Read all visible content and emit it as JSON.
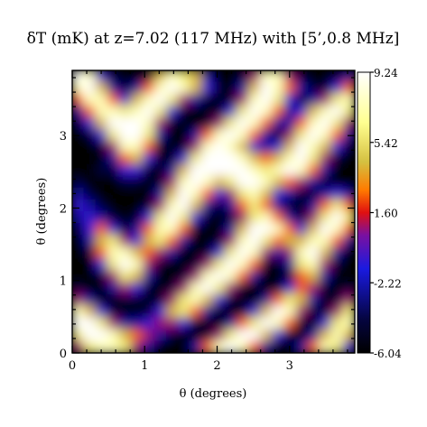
{
  "chart_data": {
    "type": "heatmap",
    "title": "δT (mK) at z=7.02 (117 MHz) with [5’,0.8 MHz]",
    "xlabel": "θ (degrees)",
    "ylabel": "θ (degrees)",
    "xlim": [
      0,
      3.9
    ],
    "ylim": [
      0,
      3.9
    ],
    "xticks": [
      "0",
      "1",
      "2",
      "3"
    ],
    "yticks": [
      "0",
      "1",
      "2",
      "3"
    ],
    "colorbar": {
      "range": [
        -6.04,
        9.24
      ],
      "ticks": [
        "9.24",
        "5.42",
        "1.60",
        "-2.22",
        "-6.04"
      ],
      "colors": [
        "#000000",
        "#050540",
        "#1a1ae0",
        "#7a10a0",
        "#e01010",
        "#ff7a00",
        "#d4c040",
        "#ffff90",
        "#ffffff"
      ]
    },
    "grid_note": "brightness field; bright (positive) connected regions on dark background",
    "grid": [
      [
        9,
        8,
        3,
        1,
        0,
        0,
        1,
        6,
        8,
        7,
        6,
        2,
        0,
        0,
        1,
        4,
        8,
        8,
        4,
        1,
        0,
        0,
        1,
        2
      ],
      [
        8,
        9,
        6,
        2,
        1,
        2,
        5,
        8,
        9,
        8,
        6,
        3,
        1,
        0,
        2,
        6,
        9,
        8,
        5,
        2,
        1,
        1,
        3,
        5
      ],
      [
        5,
        8,
        8,
        5,
        3,
        6,
        8,
        9,
        7,
        4,
        2,
        1,
        0,
        1,
        4,
        8,
        9,
        7,
        3,
        1,
        2,
        4,
        7,
        8
      ],
      [
        2,
        5,
        8,
        8,
        7,
        8,
        9,
        7,
        3,
        1,
        0,
        0,
        1,
        3,
        7,
        9,
        8,
        5,
        2,
        3,
        6,
        8,
        9,
        7
      ],
      [
        1,
        3,
        6,
        9,
        9,
        9,
        8,
        4,
        1,
        0,
        0,
        1,
        4,
        7,
        9,
        8,
        5,
        2,
        2,
        5,
        8,
        9,
        7,
        4
      ],
      [
        0,
        1,
        3,
        7,
        9,
        9,
        7,
        2,
        0,
        0,
        2,
        5,
        8,
        9,
        8,
        5,
        2,
        1,
        4,
        7,
        9,
        8,
        5,
        2
      ],
      [
        0,
        0,
        1,
        4,
        8,
        8,
        5,
        1,
        0,
        1,
        4,
        8,
        9,
        8,
        6,
        3,
        2,
        3,
        6,
        9,
        8,
        6,
        3,
        1
      ],
      [
        0,
        0,
        0,
        2,
        5,
        6,
        3,
        0,
        1,
        3,
        7,
        9,
        9,
        9,
        8,
        6,
        5,
        6,
        8,
        9,
        7,
        4,
        1,
        0
      ],
      [
        0,
        0,
        1,
        1,
        3,
        3,
        1,
        0,
        2,
        6,
        9,
        9,
        9,
        9,
        9,
        8,
        7,
        8,
        9,
        8,
        5,
        2,
        0,
        0
      ],
      [
        1,
        0,
        0,
        0,
        1,
        1,
        0,
        1,
        4,
        8,
        9,
        8,
        6,
        7,
        9,
        9,
        8,
        6,
        5,
        4,
        2,
        1,
        0,
        0
      ],
      [
        2,
        1,
        0,
        0,
        0,
        0,
        0,
        2,
        6,
        9,
        8,
        5,
        3,
        4,
        7,
        8,
        6,
        3,
        2,
        1,
        1,
        2,
        3,
        2
      ],
      [
        3,
        2,
        1,
        0,
        0,
        0,
        1,
        4,
        8,
        9,
        6,
        2,
        1,
        2,
        5,
        7,
        5,
        2,
        1,
        0,
        2,
        5,
        7,
        5
      ],
      [
        2,
        3,
        2,
        1,
        0,
        1,
        3,
        7,
        9,
        7,
        3,
        1,
        0,
        1,
        4,
        7,
        8,
        5,
        2,
        1,
        4,
        7,
        9,
        7
      ],
      [
        1,
        3,
        5,
        3,
        1,
        2,
        5,
        8,
        8,
        5,
        1,
        0,
        0,
        2,
        6,
        9,
        9,
        8,
        5,
        3,
        6,
        9,
        8,
        5
      ],
      [
        0,
        2,
        6,
        7,
        4,
        3,
        6,
        7,
        5,
        2,
        0,
        0,
        1,
        4,
        8,
        9,
        7,
        5,
        6,
        6,
        8,
        8,
        5,
        2
      ],
      [
        0,
        1,
        5,
        8,
        8,
        6,
        5,
        4,
        2,
        0,
        0,
        1,
        3,
        7,
        9,
        8,
        4,
        2,
        4,
        8,
        9,
        6,
        2,
        0
      ],
      [
        0,
        0,
        3,
        7,
        9,
        8,
        4,
        1,
        0,
        0,
        1,
        4,
        7,
        9,
        8,
        5,
        1,
        0,
        2,
        7,
        8,
        4,
        1,
        0
      ],
      [
        0,
        0,
        1,
        4,
        7,
        6,
        2,
        0,
        0,
        1,
        4,
        8,
        9,
        8,
        5,
        2,
        0,
        0,
        1,
        5,
        6,
        2,
        0,
        0
      ],
      [
        1,
        0,
        0,
        2,
        4,
        3,
        1,
        0,
        1,
        4,
        8,
        9,
        7,
        4,
        1,
        0,
        0,
        1,
        3,
        5,
        4,
        1,
        0,
        1
      ],
      [
        4,
        2,
        0,
        0,
        1,
        1,
        0,
        1,
        4,
        7,
        8,
        6,
        3,
        1,
        0,
        0,
        2,
        5,
        7,
        6,
        2,
        0,
        1,
        4
      ],
      [
        8,
        6,
        3,
        1,
        0,
        0,
        1,
        3,
        6,
        7,
        5,
        2,
        0,
        0,
        1,
        3,
        6,
        9,
        8,
        4,
        1,
        1,
        4,
        7
      ],
      [
        9,
        9,
        7,
        4,
        2,
        2,
        3,
        4,
        4,
        3,
        1,
        0,
        0,
        2,
        5,
        7,
        9,
        8,
        5,
        1,
        0,
        3,
        7,
        8
      ],
      [
        7,
        9,
        9,
        8,
        6,
        5,
        4,
        2,
        1,
        0,
        0,
        1,
        4,
        7,
        9,
        9,
        6,
        3,
        1,
        0,
        2,
        6,
        8,
        6
      ],
      [
        4,
        7,
        8,
        8,
        7,
        4,
        2,
        0,
        0,
        0,
        2,
        5,
        8,
        9,
        8,
        5,
        2,
        0,
        0,
        2,
        5,
        8,
        7,
        3
      ]
    ]
  }
}
